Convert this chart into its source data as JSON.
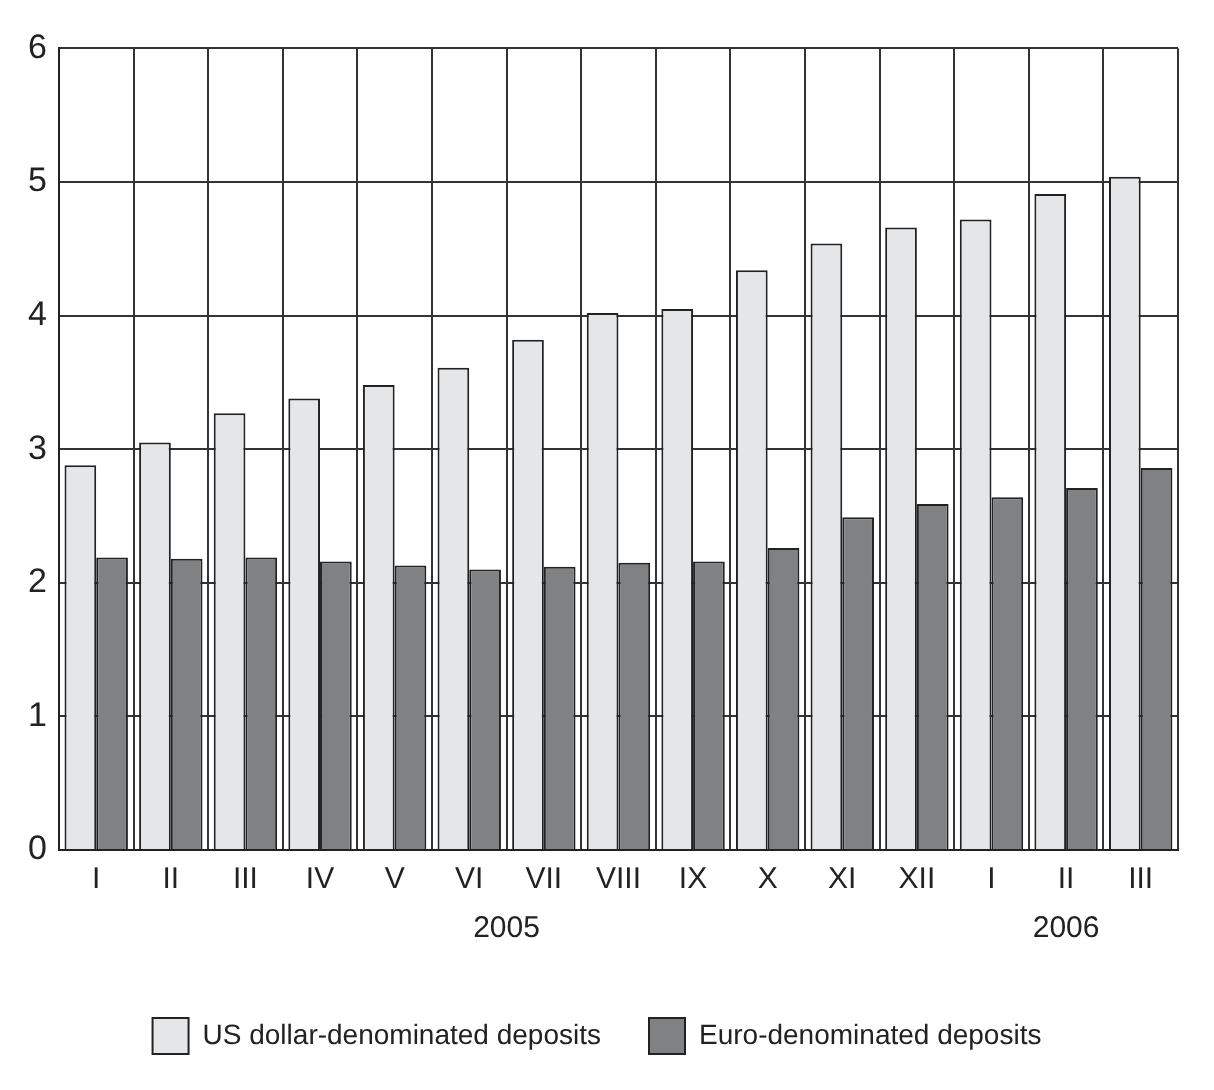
{
  "chart_data": {
    "type": "bar",
    "categories": [
      "I",
      "II",
      "III",
      "IV",
      "V",
      "VI",
      "VII",
      "VIII",
      "IX",
      "X",
      "XI",
      "XII",
      "I",
      "II",
      "III"
    ],
    "series": [
      {
        "name": "US dollar-denominated deposits",
        "color": "#e5e6e8",
        "values": [
          2.88,
          3.05,
          3.27,
          3.38,
          3.48,
          3.61,
          3.82,
          4.02,
          4.05,
          4.34,
          4.54,
          4.66,
          4.72,
          4.91,
          5.04
        ]
      },
      {
        "name": "Euro-denominated deposits",
        "color": "#808183",
        "values": [
          2.19,
          2.18,
          2.19,
          2.16,
          2.13,
          2.1,
          2.12,
          2.15,
          2.16,
          2.26,
          2.49,
          2.59,
          2.64,
          2.71,
          2.86
        ]
      }
    ],
    "ylim": [
      0,
      6
    ],
    "yticks": [
      0,
      1,
      2,
      3,
      4,
      5,
      6
    ],
    "grid": true,
    "legend": "bottom",
    "annotations": [
      "2005",
      "2006"
    ]
  }
}
